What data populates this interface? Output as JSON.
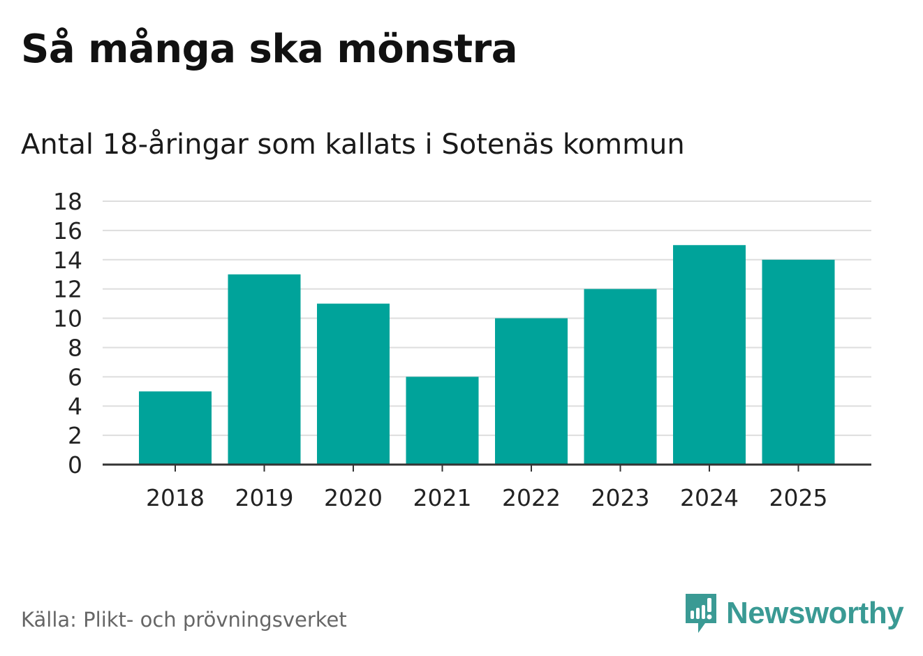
{
  "title": "Så många ska mönstra",
  "subtitle": "Antal 18-åringar som kallats i Sotenäs kommun",
  "source": "Källa: Plikt- och prövningsverket",
  "brand": {
    "name": "Newsworthy",
    "color": "#3a9a94",
    "icon": "newsworthy-logo-icon"
  },
  "chart_data": {
    "type": "bar",
    "title": "Så många ska mönstra",
    "subtitle": "Antal 18-åringar som kallats i Sotenäs kommun",
    "categories": [
      "2018",
      "2019",
      "2020",
      "2021",
      "2022",
      "2023",
      "2024",
      "2025"
    ],
    "values": [
      5,
      13,
      11,
      6,
      10,
      12,
      15,
      14
    ],
    "xlabel": "",
    "ylabel": "",
    "ylim": [
      0,
      18
    ],
    "yticks": [
      0,
      2,
      4,
      6,
      8,
      10,
      12,
      14,
      16,
      18
    ],
    "grid": true,
    "bar_color": "#00a39a",
    "grid_color": "#dddddd",
    "axis_color": "#333333"
  }
}
